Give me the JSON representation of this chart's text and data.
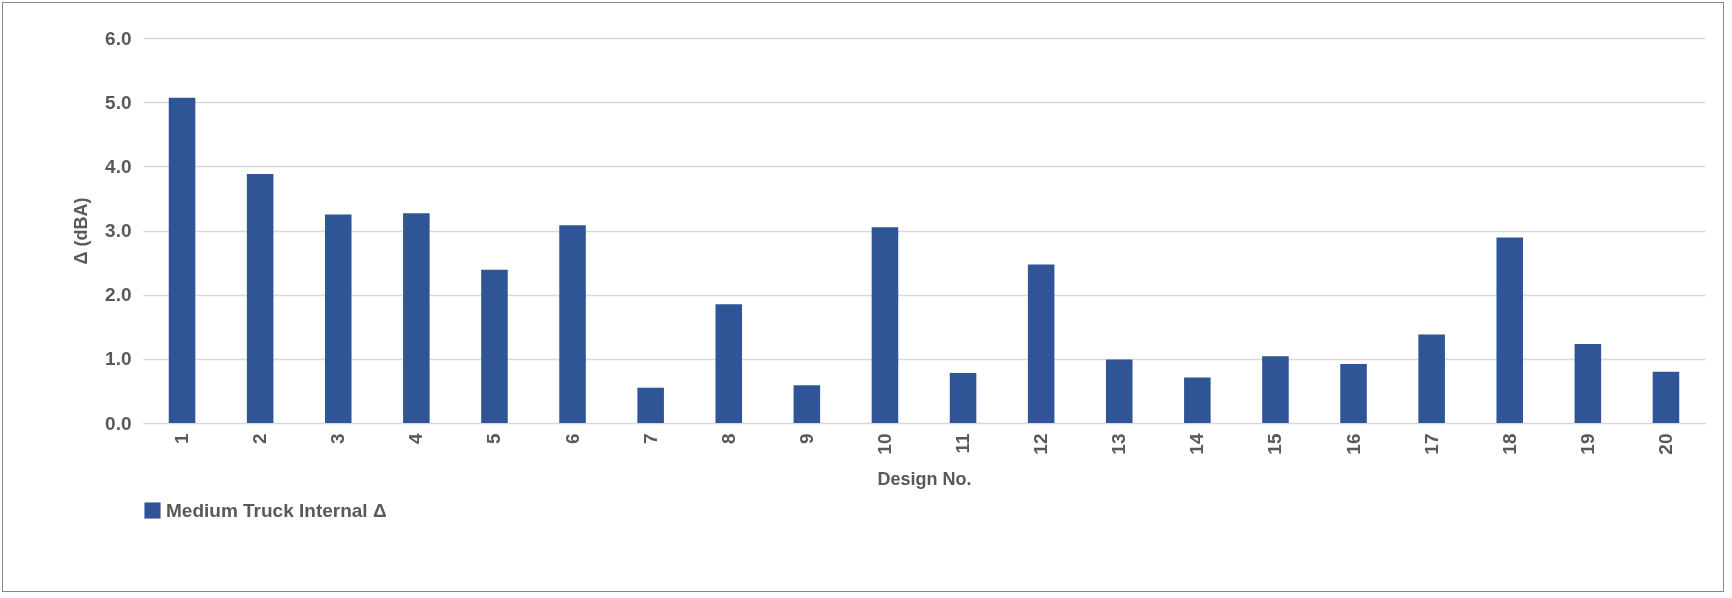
{
  "chart_data": {
    "type": "bar",
    "xlabel": "Design No.",
    "ylabel": "Δ (dBA)",
    "categories": [
      "1",
      "2",
      "3",
      "4",
      "5",
      "6",
      "7",
      "8",
      "9",
      "10",
      "11",
      "12",
      "13",
      "14",
      "15",
      "16",
      "17",
      "18",
      "19",
      "20"
    ],
    "series": [
      {
        "name": "Medium Truck Internal Δ",
        "color": "#2f5597",
        "values": [
          5.07,
          3.88,
          3.25,
          3.27,
          2.39,
          3.08,
          0.55,
          1.85,
          0.59,
          3.05,
          0.78,
          2.47,
          0.99,
          0.71,
          1.04,
          0.92,
          1.38,
          2.89,
          1.23,
          0.8
        ]
      }
    ],
    "ylim": [
      0,
      6
    ],
    "yticks": [
      {
        "value": 0,
        "label": "0.0"
      },
      {
        "value": 1,
        "label": "1.0"
      },
      {
        "value": 2,
        "label": "2.0"
      },
      {
        "value": 3,
        "label": "3.0"
      },
      {
        "value": 4,
        "label": "4.0"
      },
      {
        "value": 5,
        "label": "5.0"
      },
      {
        "value": 6,
        "label": "6.0"
      }
    ],
    "grid": "y",
    "legend": "bottom"
  }
}
